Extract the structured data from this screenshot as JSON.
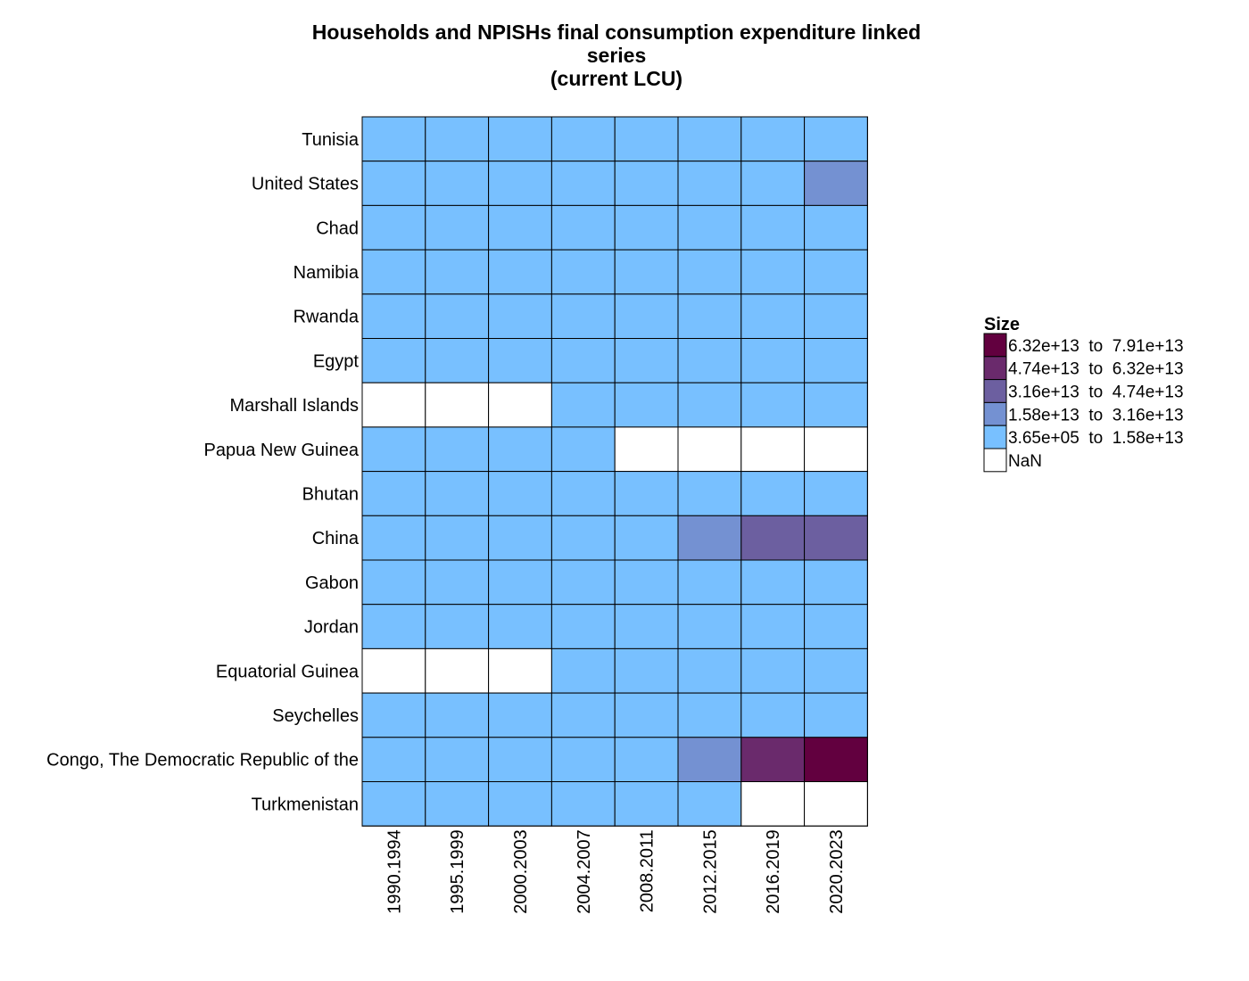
{
  "chart_data": {
    "type": "heatmap",
    "title_lines": [
      "Households and NPISHs final consumption expenditure linked",
      "series",
      "(current LCU)"
    ],
    "x_categories": [
      "1990.1994",
      "1995.1999",
      "2000.2003",
      "2004.2007",
      "2008.2011",
      "2012.2015",
      "2016.2019",
      "2020.2023"
    ],
    "y_categories": [
      "Tunisia",
      "United States",
      "Chad",
      "Namibia",
      "Rwanda",
      "Egypt",
      "Marshall Islands",
      "Papua New Guinea",
      "Bhutan",
      "China",
      "Gabon",
      "Jordan",
      "Equatorial Guinea",
      "Seychelles",
      "Congo, The Democratic Republic of the",
      "Turkmenistan"
    ],
    "legend": {
      "title": "Size",
      "position": "right",
      "bins": [
        {
          "label": "6.32e+13  to  7.91e+13",
          "color": "#62003f"
        },
        {
          "label": "4.74e+13  to  6.32e+13",
          "color": "#6a2a6c"
        },
        {
          "label": "3.16e+13  to  4.74e+13",
          "color": "#6c5fa0"
        },
        {
          "label": "1.58e+13  to  3.16e+13",
          "color": "#7491d2"
        },
        {
          "label": "3.65e+05  to  1.58e+13",
          "color": "#78c0ff"
        },
        {
          "label": "NaN",
          "color": "#ffffff"
        }
      ]
    },
    "bin_index_meaning": "values are legend bin indices: 0 = 3.65e+05 to 1.58e+13, 1 = 1.58e+13 to 3.16e+13, 2 = 3.16e+13 to 4.74e+13, 3 = 4.74e+13 to 6.32e+13, 4 = 6.32e+13 to 7.91e+13, null = NaN",
    "values": [
      [
        0,
        0,
        0,
        0,
        0,
        0,
        0,
        0
      ],
      [
        0,
        0,
        0,
        0,
        0,
        0,
        0,
        1
      ],
      [
        0,
        0,
        0,
        0,
        0,
        0,
        0,
        0
      ],
      [
        0,
        0,
        0,
        0,
        0,
        0,
        0,
        0
      ],
      [
        0,
        0,
        0,
        0,
        0,
        0,
        0,
        0
      ],
      [
        0,
        0,
        0,
        0,
        0,
        0,
        0,
        0
      ],
      [
        null,
        null,
        null,
        0,
        0,
        0,
        0,
        0
      ],
      [
        0,
        0,
        0,
        0,
        null,
        null,
        null,
        null
      ],
      [
        0,
        0,
        0,
        0,
        0,
        0,
        0,
        0
      ],
      [
        0,
        0,
        0,
        0,
        0,
        1,
        2,
        2
      ],
      [
        0,
        0,
        0,
        0,
        0,
        0,
        0,
        0
      ],
      [
        0,
        0,
        0,
        0,
        0,
        0,
        0,
        0
      ],
      [
        null,
        null,
        null,
        0,
        0,
        0,
        0,
        0
      ],
      [
        0,
        0,
        0,
        0,
        0,
        0,
        0,
        0
      ],
      [
        0,
        0,
        0,
        0,
        0,
        1,
        3,
        4
      ],
      [
        0,
        0,
        0,
        0,
        0,
        0,
        null,
        null
      ]
    ],
    "grid": true,
    "cell_border_color": "#000000"
  }
}
